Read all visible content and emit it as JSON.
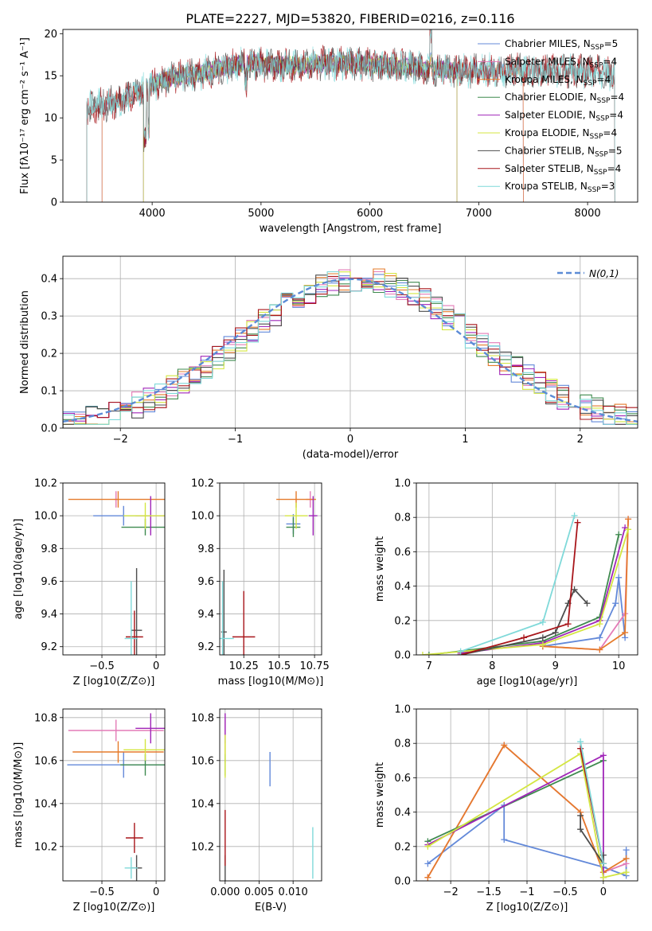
{
  "colors": {
    "Chabrier MILES": "#6389d9",
    "Salpeter MILES": "#e37bb7",
    "Kroupa MILES": "#e57b2b",
    "Chabrier ELODIE": "#3f8a4f",
    "Salpeter ELODIE": "#a025b8",
    "Kroupa ELODIE": "#d4e642",
    "Chabrier STELIB": "#4d4d4d",
    "Salpeter STELIB": "#a8161b",
    "Kroupa STELIB": "#7fd9d9"
  },
  "chart_data": [
    {
      "id": "spectrum",
      "type": "line",
      "title": "PLATE=2227, MJD=53820, FIBERID=0216, z=0.116",
      "xlabel": "wavelength [Angstrom, rest frame]",
      "ylabel": "Flux [fλ10⁻¹⁷ erg cm⁻² s⁻¹ A⁻¹]",
      "xlim": [
        3180,
        8460
      ],
      "ylim": [
        0,
        20.5
      ],
      "xticks": [
        4000,
        5000,
        6000,
        7000,
        8000
      ],
      "yticks": [
        0,
        5,
        10,
        15,
        20
      ],
      "legend_position": "top-right",
      "continuum": {
        "x": [
          3400,
          3550,
          3700,
          3900,
          4000,
          4200,
          4400,
          4600,
          4800,
          5000,
          5300,
          5600,
          6000,
          6400,
          6800,
          7200,
          7600,
          8000,
          8250
        ],
        "y": [
          11.2,
          11.6,
          12.0,
          13.2,
          14.0,
          14.8,
          15.2,
          15.8,
          16.5,
          16.4,
          16.2,
          16.5,
          16.4,
          16.0,
          15.6,
          15.7,
          15.6,
          15.5,
          15.3
        ]
      },
      "series": [
        {
          "name": "Chabrier MILES",
          "legend": "Chabrier MILES, N",
          "sub": "SSP",
          "tail": "=5",
          "lo": 3540,
          "hi": 7410
        },
        {
          "name": "Salpeter MILES",
          "legend": "Salpeter MILES, N",
          "sub": "SSP",
          "tail": "=4",
          "lo": 3540,
          "hi": 7410
        },
        {
          "name": "Kroupa MILES",
          "legend": "Kroupa MILES, N",
          "sub": "SSP",
          "tail": "=4",
          "lo": 3540,
          "hi": 7410
        },
        {
          "name": "Chabrier ELODIE",
          "legend": "Chabrier ELODIE, N",
          "sub": "SSP",
          "tail": "=4",
          "lo": 3920,
          "hi": 6800
        },
        {
          "name": "Salpeter ELODIE",
          "legend": "Salpeter ELODIE, N",
          "sub": "SSP",
          "tail": "=4",
          "lo": 3920,
          "hi": 6800
        },
        {
          "name": "Kroupa ELODIE",
          "legend": "Kroupa ELODIE, N",
          "sub": "SSP",
          "tail": "=4",
          "lo": 3920,
          "hi": 6800
        },
        {
          "name": "Chabrier STELIB",
          "legend": "Chabrier STELIB, N",
          "sub": "SSP",
          "tail": "=5",
          "lo": 3400,
          "hi": 8250
        },
        {
          "name": "Salpeter STELIB",
          "legend": "Salpeter STELIB, N",
          "sub": "SSP",
          "tail": "=4",
          "lo": 3400,
          "hi": 8250
        },
        {
          "name": "Kroupa STELIB",
          "legend": "Kroupa STELIB, N",
          "sub": "SSP",
          "tail": "=3",
          "lo": 3400,
          "hi": 8250
        }
      ]
    },
    {
      "id": "residuals",
      "type": "line",
      "xlabel": "(data-model)/error",
      "ylabel": "Normed distribution",
      "xlim": [
        -2.5,
        2.5
      ],
      "ylim": [
        0,
        0.46
      ],
      "xticks": [
        -2,
        -1,
        0,
        1,
        2
      ],
      "yticks": [
        0.0,
        0.1,
        0.2,
        0.3,
        0.4
      ],
      "grid": true,
      "legend_label": "N(0,1)",
      "legend_position": "top-right",
      "bins": 50
    },
    {
      "id": "age-vs-Z",
      "type": "scatter",
      "xlabel": "Z [log10(Z/Z⊙)]",
      "ylabel": "age [log10(age/yr)]",
      "xlim": [
        -0.86,
        0.08
      ],
      "ylim": [
        9.15,
        10.2
      ],
      "xticks": [
        -0.5,
        0.0
      ],
      "yticks": [
        9.2,
        9.4,
        9.6,
        9.8,
        10.0,
        10.2
      ],
      "grid": true,
      "points": [
        {
          "s": "Chabrier MILES",
          "x": -0.3,
          "y": 10.0,
          "xe": 0.28,
          "ye": 0.06
        },
        {
          "s": "Salpeter MILES",
          "x": -0.37,
          "y": 10.1,
          "xe": 0.02,
          "ye": 0.05
        },
        {
          "s": "Kroupa MILES",
          "x": -0.35,
          "y": 10.1,
          "xe": 0.46,
          "ye": 0.05
        },
        {
          "s": "Chabrier ELODIE",
          "x": -0.1,
          "y": 9.93,
          "xe": 0.22,
          "ye": 0.05
        },
        {
          "s": "Salpeter ELODIE",
          "x": -0.05,
          "y": 10.0,
          "xe": 0.14,
          "ye": 0.12
        },
        {
          "s": "Kroupa ELODIE",
          "x": -0.1,
          "y": 10.0,
          "xe": 0.2,
          "ye": 0.08
        },
        {
          "s": "Chabrier STELIB",
          "x": -0.18,
          "y": 9.3,
          "xe": 0.05,
          "ye": 0.38
        },
        {
          "s": "Salpeter STELIB",
          "x": -0.2,
          "y": 9.26,
          "xe": 0.08,
          "ye": 0.16
        },
        {
          "s": "Kroupa STELIB",
          "x": -0.23,
          "y": 9.25,
          "xe": 0.06,
          "ye": 0.35
        }
      ]
    },
    {
      "id": "age-vs-mass",
      "type": "scatter",
      "xlabel": "mass [log10(M/M⊙)]",
      "ylabel": "",
      "xlim": [
        10.08,
        10.8
      ],
      "ylim": [
        9.15,
        10.2
      ],
      "xticks": [
        10.25,
        10.5,
        10.75
      ],
      "yticks": [
        9.2,
        9.4,
        9.6,
        9.8,
        10.0,
        10.2
      ],
      "grid": true,
      "points": [
        {
          "s": "Chabrier MILES",
          "x": 10.6,
          "y": 9.95,
          "xe": 0.05,
          "ye": 0.06
        },
        {
          "s": "Salpeter MILES",
          "x": 10.72,
          "y": 10.1,
          "xe": 0.03,
          "ye": 0.05
        },
        {
          "s": "Kroupa MILES",
          "x": 10.62,
          "y": 10.1,
          "xe": 0.14,
          "ye": 0.05
        },
        {
          "s": "Chabrier ELODIE",
          "x": 10.6,
          "y": 9.93,
          "xe": 0.05,
          "ye": 0.06
        },
        {
          "s": "Salpeter ELODIE",
          "x": 10.74,
          "y": 10.0,
          "xe": 0.03,
          "ye": 0.12
        },
        {
          "s": "Kroupa ELODIE",
          "x": 10.62,
          "y": 10.0,
          "xe": 0.08,
          "ye": 0.08
        },
        {
          "s": "Chabrier STELIB",
          "x": 10.11,
          "y": 9.29,
          "xe": 0.02,
          "ye": 0.38
        },
        {
          "s": "Salpeter STELIB",
          "x": 10.25,
          "y": 9.26,
          "xe": 0.08,
          "ye": 0.28
        },
        {
          "s": "Kroupa STELIB",
          "x": 10.1,
          "y": 9.25,
          "xe": 0.08,
          "ye": 0.35
        }
      ]
    },
    {
      "id": "mass-weight-vs-age",
      "type": "line",
      "xlabel": "age [log10(age/yr)]",
      "ylabel": "mass weight",
      "xlim": [
        6.8,
        10.3
      ],
      "ylim": [
        0,
        1.0
      ],
      "xticks": [
        7,
        8,
        9,
        10
      ],
      "yticks": [
        0.0,
        0.2,
        0.4,
        0.6,
        0.8,
        1.0
      ],
      "grid": true,
      "series": [
        {
          "s": "Chabrier MILES",
          "x": [
            8.8,
            9.7,
            9.95,
            10.0,
            10.1
          ],
          "y": [
            0.05,
            0.1,
            0.3,
            0.45,
            0.1
          ]
        },
        {
          "s": "Salpeter MILES",
          "x": [
            8.8,
            9.7,
            10.1,
            10.15
          ],
          "y": [
            0.05,
            0.03,
            0.24,
            0.79
          ]
        },
        {
          "s": "Kroupa MILES",
          "x": [
            8.8,
            9.7,
            10.1,
            10.15
          ],
          "y": [
            0.05,
            0.03,
            0.13,
            0.79
          ]
        },
        {
          "s": "Chabrier ELODIE",
          "x": [
            7.0,
            8.8,
            9.7,
            10.0
          ],
          "y": [
            0.0,
            0.08,
            0.22,
            0.7
          ]
        },
        {
          "s": "Salpeter ELODIE",
          "x": [
            7.5,
            8.8,
            9.7,
            10.1
          ],
          "y": [
            0.01,
            0.07,
            0.2,
            0.74
          ]
        },
        {
          "s": "Kroupa ELODIE",
          "x": [
            6.9,
            8.8,
            9.7,
            10.15
          ],
          "y": [
            0.0,
            0.06,
            0.18,
            0.73
          ]
        },
        {
          "s": "Chabrier STELIB",
          "x": [
            7.5,
            8.8,
            9.0,
            9.2,
            9.3,
            9.5
          ],
          "y": [
            0.0,
            0.1,
            0.13,
            0.3,
            0.38,
            0.3
          ]
        },
        {
          "s": "Salpeter STELIB",
          "x": [
            7.5,
            8.5,
            9.2,
            9.35
          ],
          "y": [
            0.0,
            0.1,
            0.18,
            0.77
          ]
        },
        {
          "s": "Kroupa STELIB",
          "x": [
            7.5,
            8.8,
            9.3
          ],
          "y": [
            0.02,
            0.19,
            0.81
          ]
        }
      ]
    },
    {
      "id": "mass-vs-Z",
      "type": "scatter",
      "xlabel": "Z [log10(Z/Z⊙)]",
      "ylabel": "mass [log10(M/M⊙)]",
      "xlim": [
        -0.86,
        0.08
      ],
      "ylim": [
        10.04,
        10.84
      ],
      "xticks": [
        -0.5,
        0.0
      ],
      "yticks": [
        10.2,
        10.4,
        10.6,
        10.8
      ],
      "grid": true,
      "points": [
        {
          "s": "Chabrier MILES",
          "x": -0.3,
          "y": 10.58,
          "xe": 0.52,
          "ye": 0.06
        },
        {
          "s": "Salpeter MILES",
          "x": -0.37,
          "y": 10.74,
          "xe": 0.44,
          "ye": 0.05
        },
        {
          "s": "Kroupa MILES",
          "x": -0.35,
          "y": 10.64,
          "xe": 0.42,
          "ye": 0.05
        },
        {
          "s": "Chabrier ELODIE",
          "x": -0.1,
          "y": 10.58,
          "xe": 0.23,
          "ye": 0.05
        },
        {
          "s": "Salpeter ELODIE",
          "x": -0.05,
          "y": 10.75,
          "xe": 0.14,
          "ye": 0.07
        },
        {
          "s": "Kroupa ELODIE",
          "x": -0.1,
          "y": 10.65,
          "xe": 0.2,
          "ye": 0.05
        },
        {
          "s": "Chabrier STELIB",
          "x": -0.18,
          "y": 10.1,
          "xe": 0.05,
          "ye": 0.06
        },
        {
          "s": "Salpeter STELIB",
          "x": -0.2,
          "y": 10.24,
          "xe": 0.08,
          "ye": 0.07
        },
        {
          "s": "Kroupa STELIB",
          "x": -0.23,
          "y": 10.1,
          "xe": 0.06,
          "ye": 0.05
        }
      ]
    },
    {
      "id": "mass-vs-EBV",
      "type": "scatter",
      "xlabel": "E(B-V)",
      "ylabel": "",
      "xlim": [
        -0.0008,
        0.0142
      ],
      "ylim": [
        10.04,
        10.84
      ],
      "xticks": [
        0.0,
        0.005,
        0.01
      ],
      "xticklabels": [
        "0.000",
        "0.005",
        "0.010"
      ],
      "yticks": [
        10.2,
        10.4,
        10.6,
        10.8
      ],
      "grid": true,
      "points": [
        {
          "s": "Chabrier MILES",
          "x": 0.0066,
          "y": 10.56,
          "xe": 0,
          "ye": 0.08
        },
        {
          "s": "Salpeter MILES",
          "x": 0.0,
          "y": 10.74,
          "xe": 0,
          "ye": 0.05
        },
        {
          "s": "Kroupa MILES",
          "x": 0.0,
          "y": 10.64,
          "xe": 0,
          "ye": 0.05
        },
        {
          "s": "Chabrier ELODIE",
          "x": 0.0,
          "y": 10.58,
          "xe": 0,
          "ye": 0.05
        },
        {
          "s": "Salpeter ELODIE",
          "x": 0.0,
          "y": 10.75,
          "xe": 0,
          "ye": 0.07
        },
        {
          "s": "Kroupa ELODIE",
          "x": 0.0,
          "y": 10.62,
          "xe": 0,
          "ye": 0.1
        },
        {
          "s": "Chabrier STELIB",
          "x": 0.0,
          "y": 10.1,
          "xe": 0,
          "ye": 0.06
        },
        {
          "s": "Salpeter STELIB",
          "x": 0.0,
          "y": 10.24,
          "xe": 0,
          "ye": 0.13
        },
        {
          "s": "Kroupa STELIB",
          "x": 0.0129,
          "y": 10.17,
          "xe": 0,
          "ye": 0.12
        }
      ]
    },
    {
      "id": "mass-weight-vs-Z",
      "type": "line",
      "xlabel": "Z [log10(Z/Z⊙)]",
      "ylabel": "mass weight",
      "xlim": [
        -2.45,
        0.45
      ],
      "ylim": [
        0,
        1.0
      ],
      "xticks": [
        -2.0,
        -1.5,
        -1.0,
        -0.5,
        0.0
      ],
      "yticks": [
        0.0,
        0.2,
        0.4,
        0.6,
        0.8,
        1.0
      ],
      "grid": true,
      "series": [
        {
          "s": "Chabrier MILES",
          "x": [
            -2.3,
            -1.3,
            -1.3,
            0.0,
            0.3,
            0.3
          ],
          "y": [
            0.1,
            0.44,
            0.24,
            0.08,
            0.03,
            0.18
          ]
        },
        {
          "s": "Salpeter MILES",
          "x": [
            -2.3,
            -1.3,
            -0.3,
            0.0,
            0.3
          ],
          "y": [
            0.02,
            0.79,
            0.4,
            0.05,
            0.1
          ]
        },
        {
          "s": "Kroupa MILES",
          "x": [
            -2.3,
            -1.3,
            -0.3,
            0.0,
            0.3
          ],
          "y": [
            0.02,
            0.79,
            0.4,
            0.05,
            0.13
          ]
        },
        {
          "s": "Chabrier ELODIE",
          "x": [
            -2.3,
            0.0
          ],
          "y": [
            0.23,
            0.7
          ]
        },
        {
          "s": "Salpeter ELODIE",
          "x": [
            -2.3,
            0.0,
            0.0
          ],
          "y": [
            0.21,
            0.73,
            0.02
          ]
        },
        {
          "s": "Kroupa ELODIE",
          "x": [
            -2.3,
            -0.3,
            0.0,
            0.3
          ],
          "y": [
            0.2,
            0.74,
            0.02,
            0.05
          ]
        },
        {
          "s": "Chabrier STELIB",
          "x": [
            -0.3,
            -0.3,
            0.0,
            0.0
          ],
          "y": [
            0.38,
            0.3,
            0.1,
            0.15
          ]
        },
        {
          "s": "Salpeter STELIB",
          "x": [
            -0.3,
            0.0
          ],
          "y": [
            0.77,
            0.1
          ]
        },
        {
          "s": "Kroupa STELIB",
          "x": [
            -0.3,
            0.0
          ],
          "y": [
            0.81,
            0.1
          ]
        }
      ]
    }
  ]
}
